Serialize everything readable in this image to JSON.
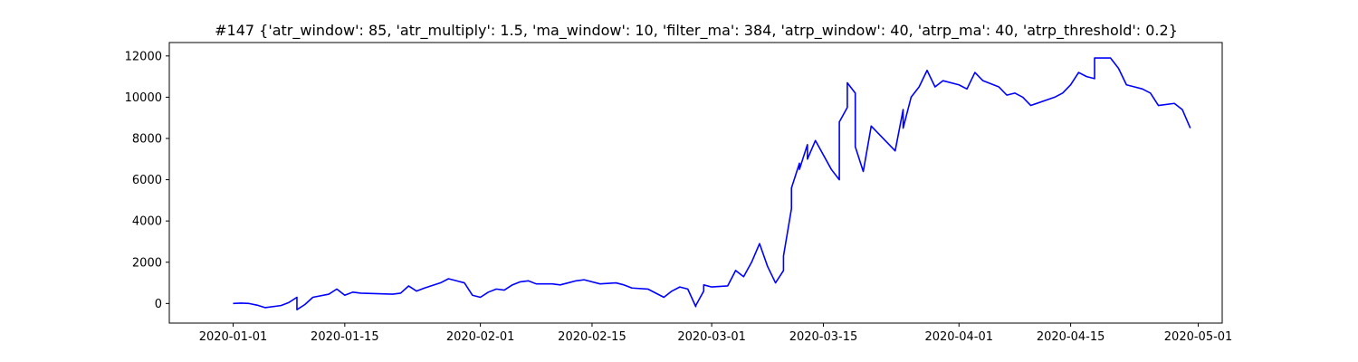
{
  "chart_data": {
    "type": "line",
    "title": "#147 {'atr_window': 85, 'atr_multiply': 1.5, 'ma_window': 10, 'filter_ma': 384, 'atrp_window': 40, 'atrp_ma': 40, 'atrp_threshold': 0.2}",
    "xlabel": "",
    "ylabel": "",
    "grid": false,
    "xlim": [
      "2019-12-24",
      "2020-05-04"
    ],
    "ylim": [
      -950,
      12650
    ],
    "x_ticks": [
      "2020-01-01",
      "2020-01-15",
      "2020-02-01",
      "2020-02-15",
      "2020-03-01",
      "2020-03-15",
      "2020-04-01",
      "2020-04-15",
      "2020-05-01"
    ],
    "y_ticks": [
      0,
      2000,
      4000,
      6000,
      8000,
      10000,
      12000
    ],
    "series": [
      {
        "color": "#0000ff",
        "x": [
          "2020-01-01",
          "2020-01-01",
          "2020-01-02",
          "2020-01-03",
          "2020-01-04",
          "2020-01-05",
          "2020-01-07",
          "2020-01-08",
          "2020-01-09",
          "2020-01-09",
          "2020-01-10",
          "2020-01-11",
          "2020-01-13",
          "2020-01-14",
          "2020-01-15",
          "2020-01-16",
          "2020-01-17",
          "2020-01-21",
          "2020-01-22",
          "2020-01-23",
          "2020-01-24",
          "2020-01-25",
          "2020-01-27",
          "2020-01-28",
          "2020-01-29",
          "2020-01-30",
          "2020-01-31",
          "2020-02-01",
          "2020-02-02",
          "2020-02-03",
          "2020-02-04",
          "2020-02-05",
          "2020-02-06",
          "2020-02-07",
          "2020-02-08",
          "2020-02-10",
          "2020-02-11",
          "2020-02-12",
          "2020-02-13",
          "2020-02-14",
          "2020-02-16",
          "2020-02-18",
          "2020-02-19",
          "2020-02-20",
          "2020-02-22",
          "2020-02-24",
          "2020-02-25",
          "2020-02-26",
          "2020-02-27",
          "2020-02-28",
          "2020-02-28",
          "2020-02-29",
          "2020-02-29",
          "2020-03-01",
          "2020-03-03",
          "2020-03-04",
          "2020-03-05",
          "2020-03-06",
          "2020-03-07",
          "2020-03-08",
          "2020-03-09",
          "2020-03-10",
          "2020-03-10",
          "2020-03-11",
          "2020-03-11",
          "2020-03-12",
          "2020-03-12",
          "2020-03-13",
          "2020-03-13",
          "2020-03-14",
          "2020-03-16",
          "2020-03-17",
          "2020-03-17",
          "2020-03-18",
          "2020-03-18",
          "2020-03-19",
          "2020-03-19",
          "2020-03-20",
          "2020-03-21",
          "2020-03-22",
          "2020-03-24",
          "2020-03-25",
          "2020-03-25",
          "2020-03-26",
          "2020-03-27",
          "2020-03-28",
          "2020-03-29",
          "2020-03-30",
          "2020-04-01",
          "2020-04-02",
          "2020-04-03",
          "2020-04-04",
          "2020-04-06",
          "2020-04-07",
          "2020-04-08",
          "2020-04-09",
          "2020-04-10",
          "2020-04-13",
          "2020-04-14",
          "2020-04-15",
          "2020-04-16",
          "2020-04-17",
          "2020-04-18",
          "2020-04-18",
          "2020-04-20",
          "2020-04-21",
          "2020-04-22",
          "2020-04-23",
          "2020-04-24",
          "2020-04-25",
          "2020-04-26",
          "2020-04-28",
          "2020-04-29",
          "2020-04-30"
        ],
        "values": [
          0,
          0,
          20,
          0,
          -80,
          -200,
          -100,
          50,
          300,
          -300,
          -50,
          300,
          450,
          700,
          400,
          550,
          500,
          450,
          500,
          850,
          600,
          750,
          1000,
          1200,
          1100,
          1000,
          400,
          300,
          550,
          700,
          650,
          900,
          1050,
          1100,
          950,
          950,
          900,
          1000,
          1100,
          1150,
          950,
          1000,
          900,
          750,
          700,
          300,
          600,
          800,
          700,
          -150,
          -100,
          600,
          900,
          800,
          850,
          1600,
          1300,
          2000,
          2900,
          1800,
          1000,
          1600,
          2300,
          4600,
          5600,
          6800,
          6500,
          7700,
          7000,
          7900,
          6500,
          6000,
          8800,
          9500,
          10700,
          10200,
          7600,
          6400,
          8600,
          8200,
          7400,
          9400,
          8500,
          10000,
          10500,
          11300,
          10500,
          10800,
          10600,
          10400,
          11200,
          10800,
          10500,
          10100,
          10200,
          10000,
          9600,
          10000,
          10200,
          10600,
          11200,
          11000,
          10900,
          11900,
          11900,
          11400,
          10600,
          10500,
          10400,
          10200,
          9600,
          9700,
          9400,
          8500
        ]
      }
    ]
  }
}
